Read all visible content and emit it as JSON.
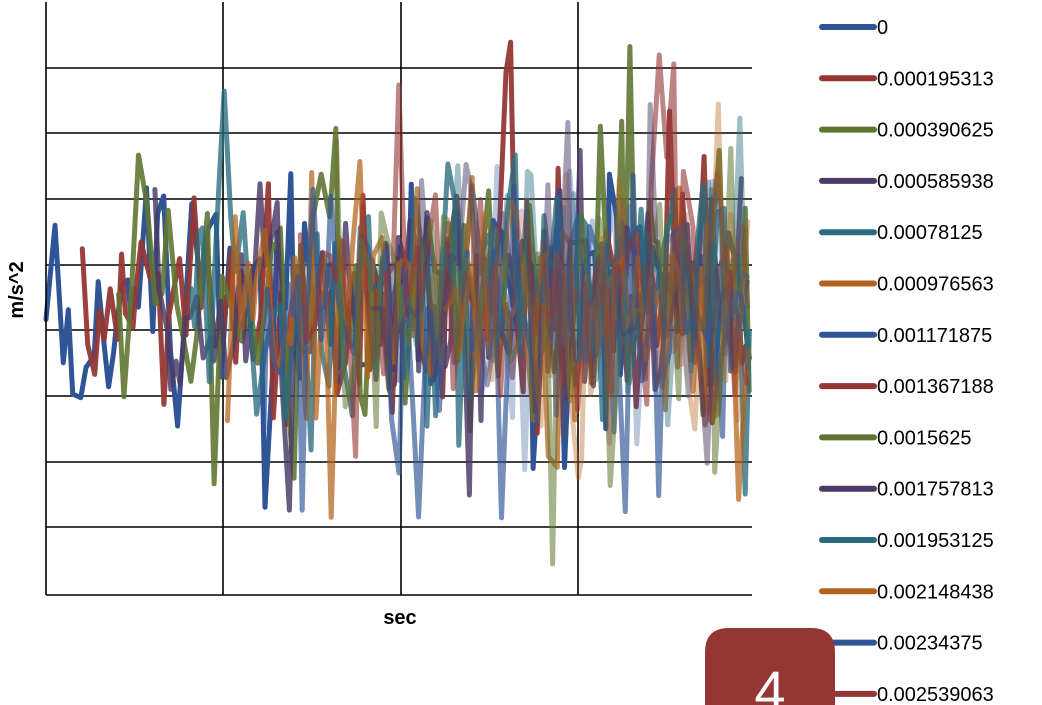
{
  "chart_data": {
    "type": "line",
    "title": "",
    "xlabel": "sec",
    "ylabel": "m/s^2",
    "grid": true,
    "legend_position": "right",
    "series": [
      {
        "name": "0",
        "color": "#2f5597"
      },
      {
        "name": "0.000195313",
        "color": "#943634"
      },
      {
        "name": "0.000390625",
        "color": "#5f7530"
      },
      {
        "name": "0.000585938",
        "color": "#4b3b66"
      },
      {
        "name": "0.00078125",
        "color": "#2a6c7d"
      },
      {
        "name": "0.000976563",
        "color": "#b2621a"
      },
      {
        "name": "0.001171875",
        "color": "#2f5597"
      },
      {
        "name": "0.001367188",
        "color": "#943634"
      },
      {
        "name": "0.0015625",
        "color": "#5f7530"
      },
      {
        "name": "0.001757813",
        "color": "#4b3b66"
      },
      {
        "name": "0.001953125",
        "color": "#2a6c7d"
      },
      {
        "name": "0.002148438",
        "color": "#b2621a"
      },
      {
        "name": "0.00234375",
        "color": "#2f5597"
      },
      {
        "name": "0.002539063",
        "color": "#943634"
      }
    ]
  },
  "page_badge": {
    "number": "4",
    "color": "#943634"
  }
}
